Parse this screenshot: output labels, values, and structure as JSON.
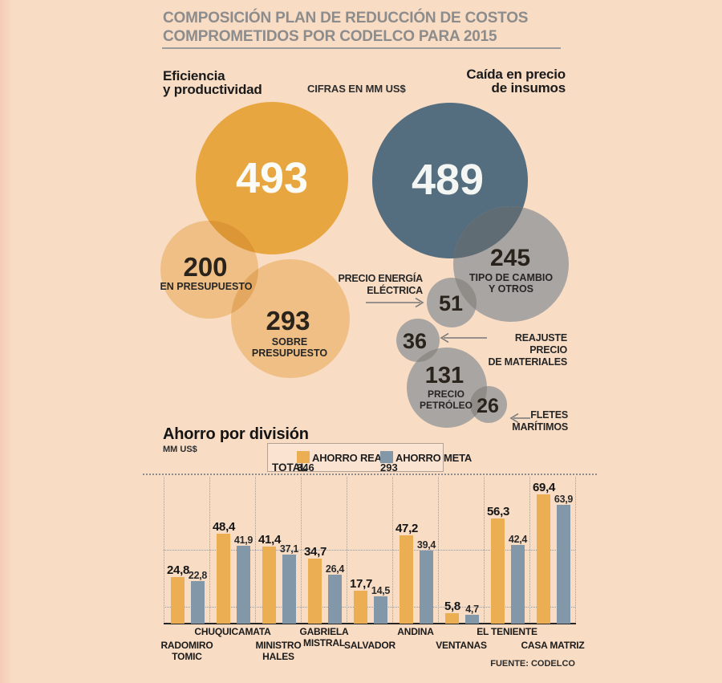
{
  "header": {
    "line1": "COMPOSICIÓN PLAN DE REDUCCIÓN DE COSTOS",
    "line2": "COMPROMETIDOS POR CODELCO PARA 2015"
  },
  "bubble_section": {
    "left_header": [
      "Eficiencia",
      "y productividad"
    ],
    "right_header": [
      "Caída en precio",
      "de insumos"
    ],
    "labels": {
      "b200": [
        "EN PRESUPUESTO"
      ],
      "b293": [
        "SOBRE",
        "PRESUPUESTO"
      ],
      "b245": [
        "TIPO DE CAMBIO",
        "Y OTROS"
      ],
      "b131": [
        "PRECIO",
        "PETRÓLEO"
      ]
    },
    "callouts": {
      "energia": [
        "PRECIO ENERGÍA",
        "ELÉCTRICA"
      ],
      "reajuste": [
        "REAJUSTE PRECIO",
        "DE MATERIALES"
      ],
      "fletes": [
        "FLETES",
        "MARÍTIMOS"
      ]
    }
  },
  "bar_section": {
    "total_label": "TOTAL"
  },
  "chart_data": [
    {
      "type": "bubble",
      "title": "COMPOSICIÓN PLAN DE REDUCCIÓN DE COSTOS COMPROMETIDOS POR CODELCO PARA 2015",
      "units": "CIFRAS EN MM US$",
      "groups": [
        {
          "name": "Eficiencia y productividad",
          "total": 493,
          "color": "#E7A63F",
          "items": [
            {
              "label": "EN PRESUPUESTO",
              "value": 200
            },
            {
              "label": "SOBRE PRESUPUESTO",
              "value": 293
            }
          ]
        },
        {
          "name": "Caída en precio de insumos",
          "total": 489,
          "color": "#546E80",
          "items": [
            {
              "label": "TIPO DE CAMBIO Y OTROS",
              "value": 245
            },
            {
              "label": "PRECIO ENERGÍA ELÉCTRICA",
              "value": 51
            },
            {
              "label": "REAJUSTE PRECIO DE MATERIALES",
              "value": 36
            },
            {
              "label": "PRECIO PETRÓLEO",
              "value": 131
            },
            {
              "label": "FLETES MARÍTIMOS",
              "value": 26
            }
          ]
        }
      ]
    },
    {
      "type": "bar",
      "title": "Ahorro por división",
      "ylabel": "MM US$",
      "categories": [
        "RADOMIRO TOMIC",
        "CHUQUICAMATA",
        "MINISTRO HALES",
        "GABRIELA MISTRAL",
        "SALVADOR",
        "ANDINA",
        "VENTANAS",
        "EL TENIENTE",
        "CASA MATRIZ"
      ],
      "category_lines": [
        [
          "RADOMIRO",
          "TOMIC"
        ],
        [
          "CHUQUICAMATA"
        ],
        [
          "MINISTRO",
          "HALES"
        ],
        [
          "GABRIELA",
          "MISTRAL"
        ],
        [
          "SALVADOR"
        ],
        [
          "ANDINA"
        ],
        [
          "VENTANAS"
        ],
        [
          "EL TENIENTE"
        ],
        [
          "CASA MATRIZ"
        ]
      ],
      "category_row": [
        "lower",
        "upper",
        "lower",
        "upper",
        "lower",
        "upper",
        "lower",
        "upper",
        "lower"
      ],
      "series": [
        {
          "name": "AHORRO REAL",
          "total": 346,
          "color": "#EBAE52",
          "values": [
            24.8,
            48.4,
            41.4,
            34.7,
            17.7,
            47.2,
            5.8,
            56.3,
            69.4
          ]
        },
        {
          "name": "AHORRO META",
          "total": 293,
          "color": "#8298A9",
          "values": [
            22.8,
            41.9,
            37.1,
            26.4,
            14.5,
            39.4,
            4.7,
            42.4,
            63.9
          ]
        }
      ],
      "ylim": [
        0,
        80
      ],
      "grid": "dotted",
      "legend_position": "top",
      "source": "FUENTE: CODELCO"
    }
  ]
}
